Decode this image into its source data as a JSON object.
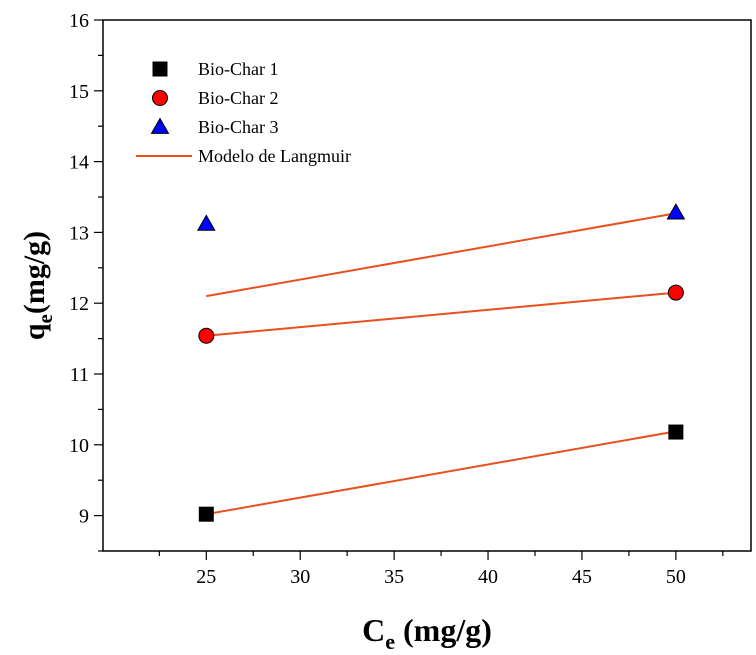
{
  "chart_data": {
    "type": "scatter",
    "xlabel": {
      "main": "C",
      "sub": "e",
      "unit": " (mg/g)"
    },
    "ylabel": {
      "main": "q",
      "sub": "e",
      "unit": "(mg/g)"
    },
    "xlim": [
      19.5,
      54
    ],
    "ylim": [
      8.5,
      16
    ],
    "xticks": [
      25,
      30,
      35,
      40,
      45,
      50
    ],
    "yticks": [
      9,
      10,
      11,
      12,
      13,
      14,
      15,
      16
    ],
    "grid": false,
    "legend_position": "top-left",
    "series": [
      {
        "name": "Bio-Char 1",
        "marker": "square",
        "color": "#000000",
        "x": [
          25,
          50
        ],
        "y": [
          9.02,
          10.18
        ]
      },
      {
        "name": "Bio-Char 2",
        "marker": "circle",
        "color": "#ff0000",
        "x": [
          25,
          50
        ],
        "y": [
          11.54,
          12.15
        ]
      },
      {
        "name": "Bio-Char 3",
        "marker": "triangle",
        "color": "#0000ff",
        "x": [
          25,
          50
        ],
        "y": [
          13.12,
          13.28
        ]
      }
    ],
    "fit_lines": {
      "name": "Modelo de Langmuir",
      "color": "#e8501e",
      "lines": [
        {
          "x": [
            25,
            50
          ],
          "y": [
            9.02,
            10.19
          ]
        },
        {
          "x": [
            25,
            50
          ],
          "y": [
            11.54,
            12.15
          ]
        },
        {
          "x": [
            25,
            50
          ],
          "y": [
            12.1,
            13.27
          ]
        }
      ]
    }
  }
}
